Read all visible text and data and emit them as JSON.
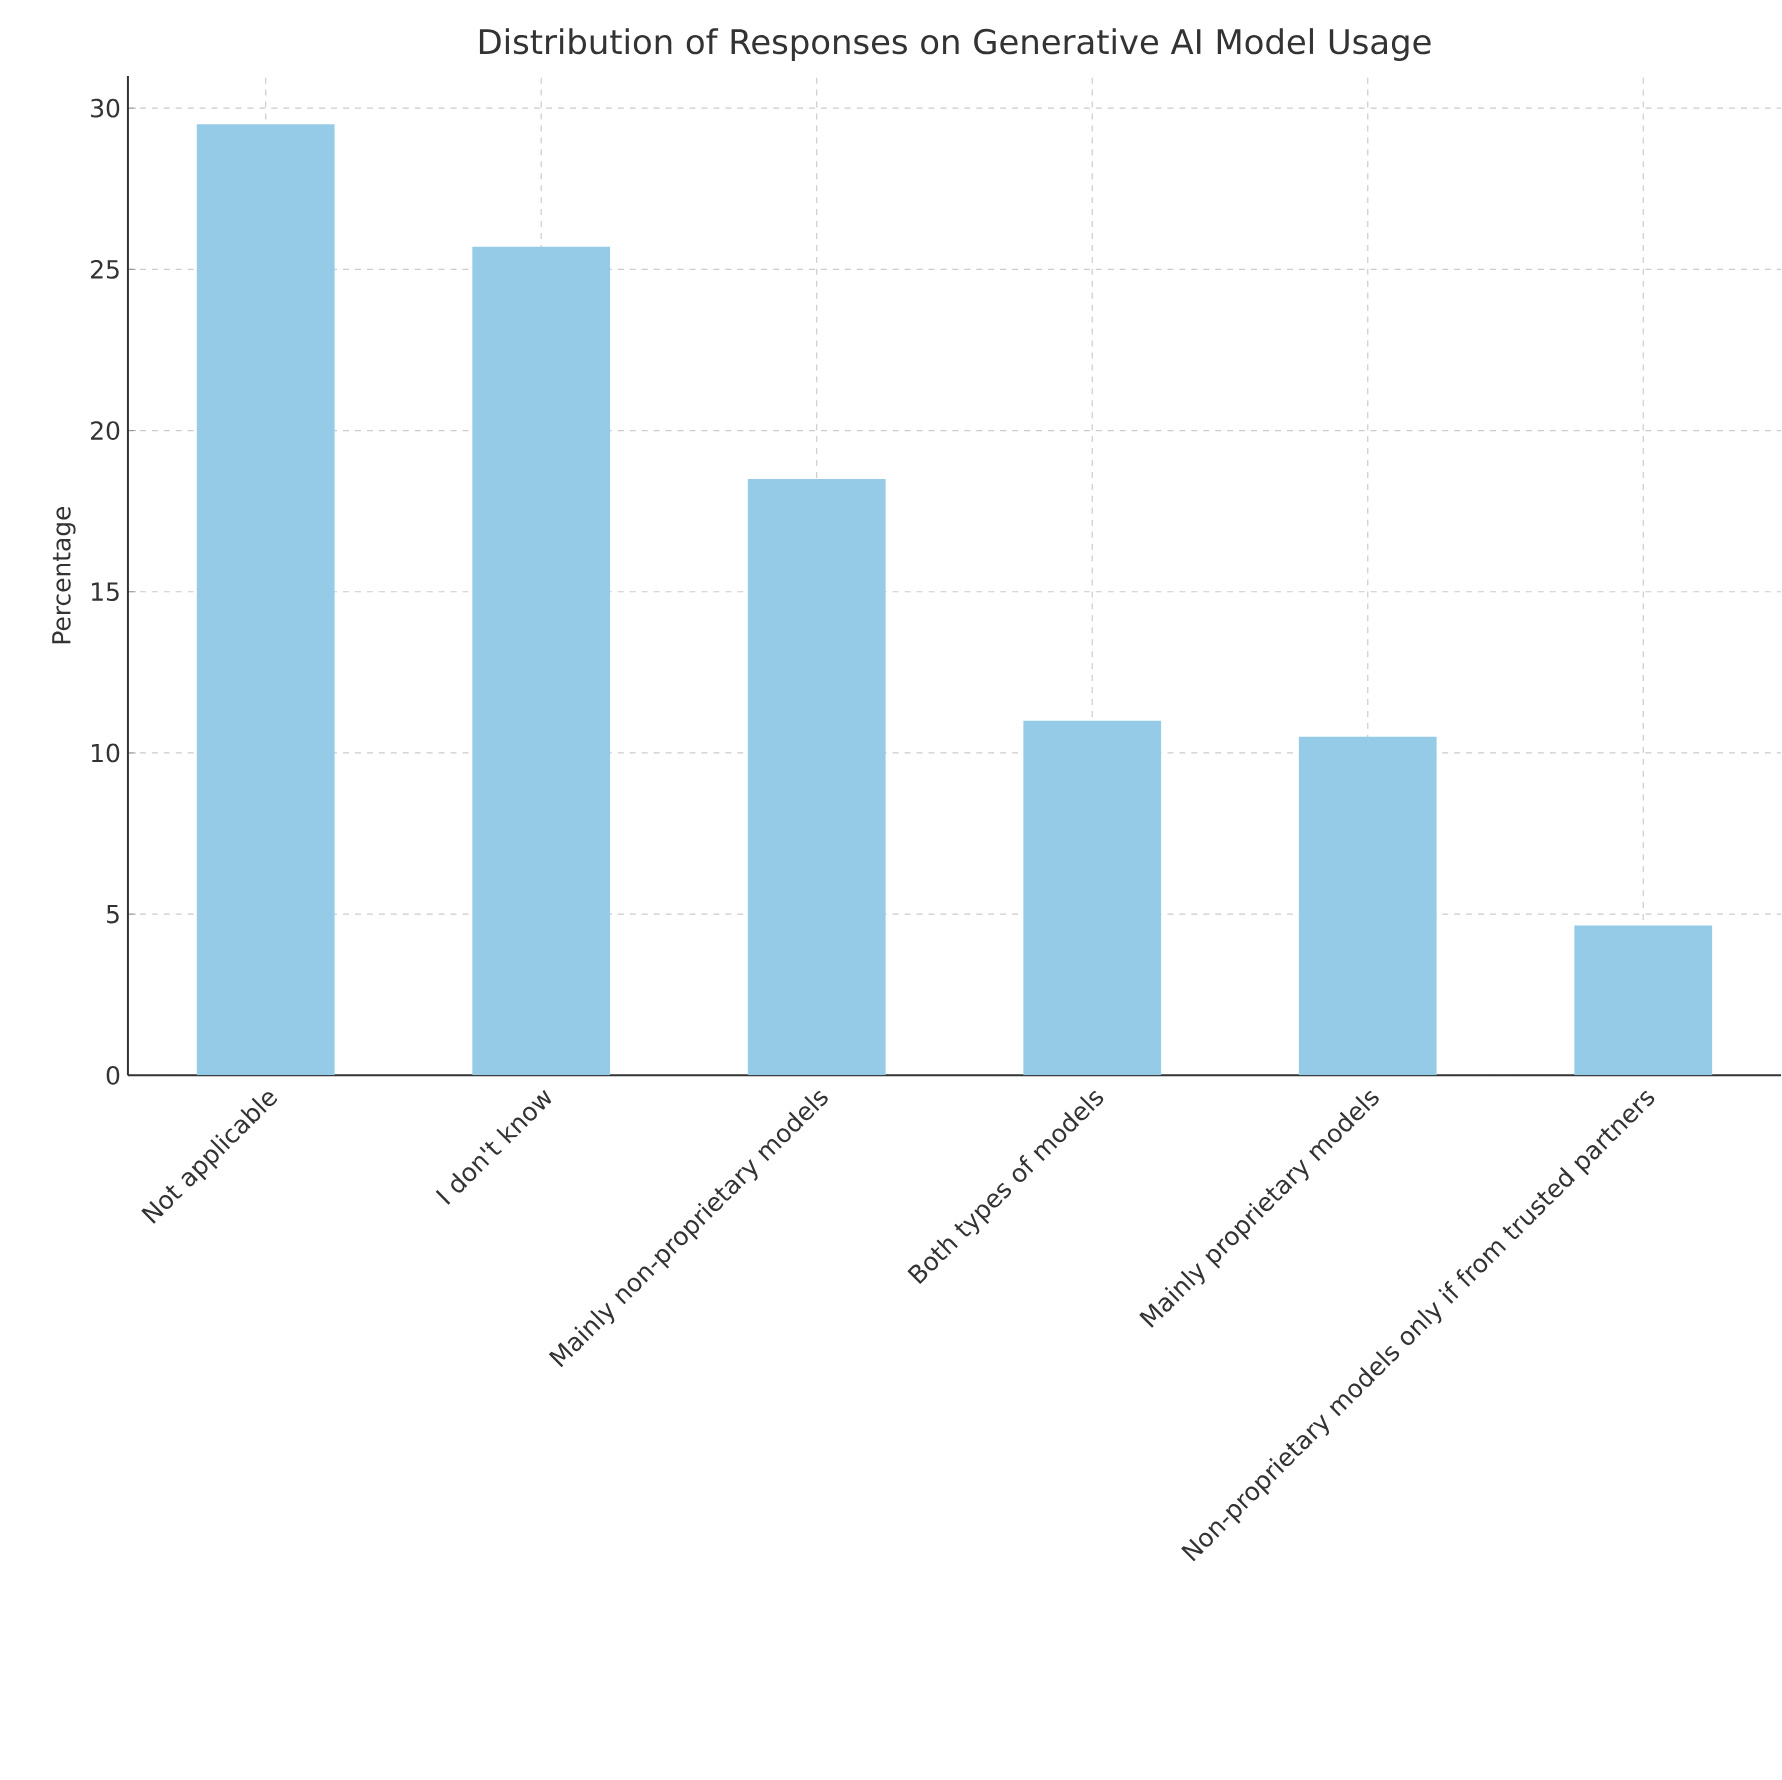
{
  "chart_data": {
    "type": "bar",
    "title": "Distribution of Responses on Generative AI Model Usage",
    "ylabel": "Percentage",
    "categories": [
      "Not applicable",
      "I don't know",
      "Mainly non-proprietary models",
      "Both types of models",
      "Mainly proprietary models",
      "Non-proprietary models only if from trusted partners"
    ],
    "values": [
      29.5,
      25.7,
      18.5,
      11.0,
      10.5,
      4.65
    ],
    "color": "#95cbe6",
    "ylim": [
      0,
      31
    ],
    "yticks": [
      0,
      5,
      10,
      15,
      20,
      25,
      30
    ],
    "grid": true
  }
}
